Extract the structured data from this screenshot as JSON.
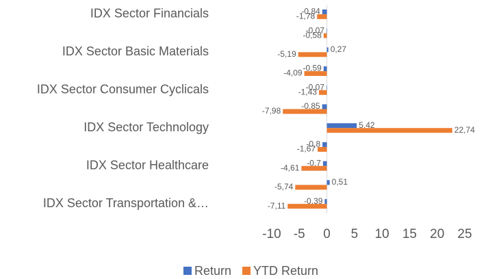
{
  "chart_data": {
    "type": "bar",
    "orientation": "horizontal",
    "categories": [
      "IDX Sector Financials",
      null,
      "IDX Sector Basic Materials",
      null,
      "IDX Sector Consumer Cyclicals",
      null,
      "IDX Sector Technology",
      null,
      "IDX Sector Healthcare",
      null,
      "IDX Sector Transportation &…"
    ],
    "series": [
      {
        "name": "Return",
        "color": "#4472c4",
        "values": [
          -0.84,
          -0.07,
          0.27,
          -0.59,
          -0.07,
          -0.85,
          5.42,
          -0.8,
          -0.7,
          0.51,
          -0.39
        ],
        "value_labels": [
          "-0,84",
          "-0,07",
          "0,27",
          "-0,59",
          "-0,07",
          "-0,85",
          "5,42",
          "-0,8",
          "-0,7",
          "0,51",
          "-0,39"
        ]
      },
      {
        "name": "YTD Return",
        "color": "#ed7d31",
        "values": [
          -1.78,
          -0.58,
          -5.19,
          -4.09,
          -1.43,
          -7.98,
          22.74,
          -1.67,
          -4.61,
          -5.74,
          -7.11
        ],
        "value_labels": [
          "-1,78",
          "-0,58",
          "-5,19",
          "-4,09",
          "-1,43",
          "-7,98",
          "22,74",
          "-1,67",
          "-4,61",
          "-5,74",
          "-7,11"
        ]
      }
    ],
    "xlim": [
      -10,
      25
    ],
    "xticks": [
      -10,
      -5,
      0,
      5,
      10,
      15,
      20,
      25
    ],
    "grid": false,
    "legend": "bottom"
  }
}
